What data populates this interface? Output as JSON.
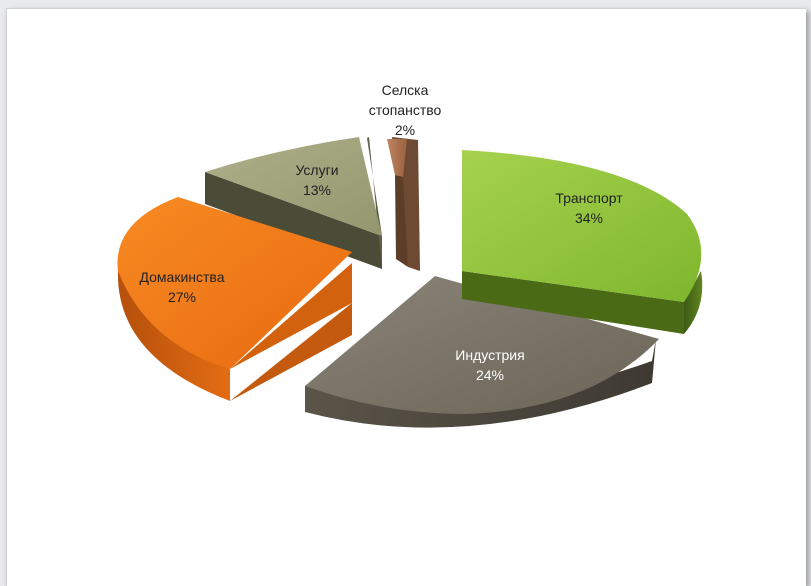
{
  "chart_data": {
    "type": "pie",
    "style": "3d-exploded",
    "slices": [
      {
        "label": "Транспорт",
        "value_text": "34%",
        "value": 34,
        "color": "#8cc43c",
        "text_color": "#333333"
      },
      {
        "label": "Индустрия",
        "value_text": "24%",
        "value": 24,
        "color": "#7a7467",
        "text_color": "#ffffff"
      },
      {
        "label": "Домакинства",
        "value_text": "27%",
        "value": 27,
        "color": "#f07a1a",
        "text_color": "#333333"
      },
      {
        "label": "Услуги",
        "value_text": "13%",
        "value": 13,
        "color": "#a0a27c",
        "text_color": "#333333"
      },
      {
        "label_lines": [
          "Селска",
          "стопанство"
        ],
        "value_text": "2%",
        "value": 2,
        "color": "#a9714e",
        "text_color": "#333333"
      }
    ]
  }
}
